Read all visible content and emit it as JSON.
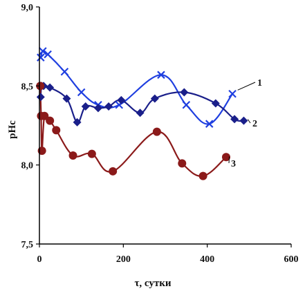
{
  "chart_data": {
    "type": "scatter",
    "title": "",
    "xlabel": "τ, сутки",
    "ylabel": "pHc",
    "xlim": [
      0,
      600
    ],
    "ylim": [
      7.5,
      9.0
    ],
    "x_ticks": [
      0,
      200,
      400,
      600
    ],
    "x_tick_labels": [
      "0",
      "200",
      "400",
      "600"
    ],
    "y_ticks": [
      7.5,
      8.0,
      8.5,
      9.0
    ],
    "y_tick_labels": [
      "7,5",
      "8,0",
      "8,5",
      "9,0"
    ],
    "grid": false,
    "legend": "none",
    "series": [
      {
        "name": "1",
        "color": "#1f3fe0",
        "marker": "x",
        "points": [
          [
            3,
            8.68
          ],
          [
            8,
            8.72
          ],
          [
            20,
            8.7
          ],
          [
            60,
            8.59
          ],
          [
            100,
            8.46
          ],
          [
            140,
            8.38
          ],
          [
            190,
            8.38
          ],
          [
            290,
            8.57
          ],
          [
            350,
            8.38
          ],
          [
            405,
            8.26
          ],
          [
            460,
            8.45
          ]
        ]
      },
      {
        "name": "2",
        "color": "#1a1f8a",
        "marker": "diamond",
        "points": [
          [
            3,
            8.43
          ],
          [
            5,
            8.5
          ],
          [
            10,
            8.5
          ],
          [
            25,
            8.49
          ],
          [
            65,
            8.42
          ],
          [
            90,
            8.27
          ],
          [
            110,
            8.37
          ],
          [
            140,
            8.36
          ],
          [
            165,
            8.37
          ],
          [
            195,
            8.41
          ],
          [
            240,
            8.33
          ],
          [
            275,
            8.42
          ],
          [
            345,
            8.46
          ],
          [
            420,
            8.39
          ],
          [
            465,
            8.29
          ],
          [
            487,
            8.28
          ]
        ]
      },
      {
        "name": "3",
        "color": "#8b1a1a",
        "marker": "circle",
        "points": [
          [
            2,
            8.5
          ],
          [
            4,
            8.31
          ],
          [
            6,
            8.09
          ],
          [
            12,
            8.31
          ],
          [
            25,
            8.28
          ],
          [
            40,
            8.22
          ],
          [
            80,
            8.06
          ],
          [
            125,
            8.07
          ],
          [
            175,
            7.96
          ],
          [
            280,
            8.21
          ],
          [
            340,
            8.01
          ],
          [
            390,
            7.93
          ],
          [
            445,
            8.05
          ]
        ]
      }
    ]
  }
}
